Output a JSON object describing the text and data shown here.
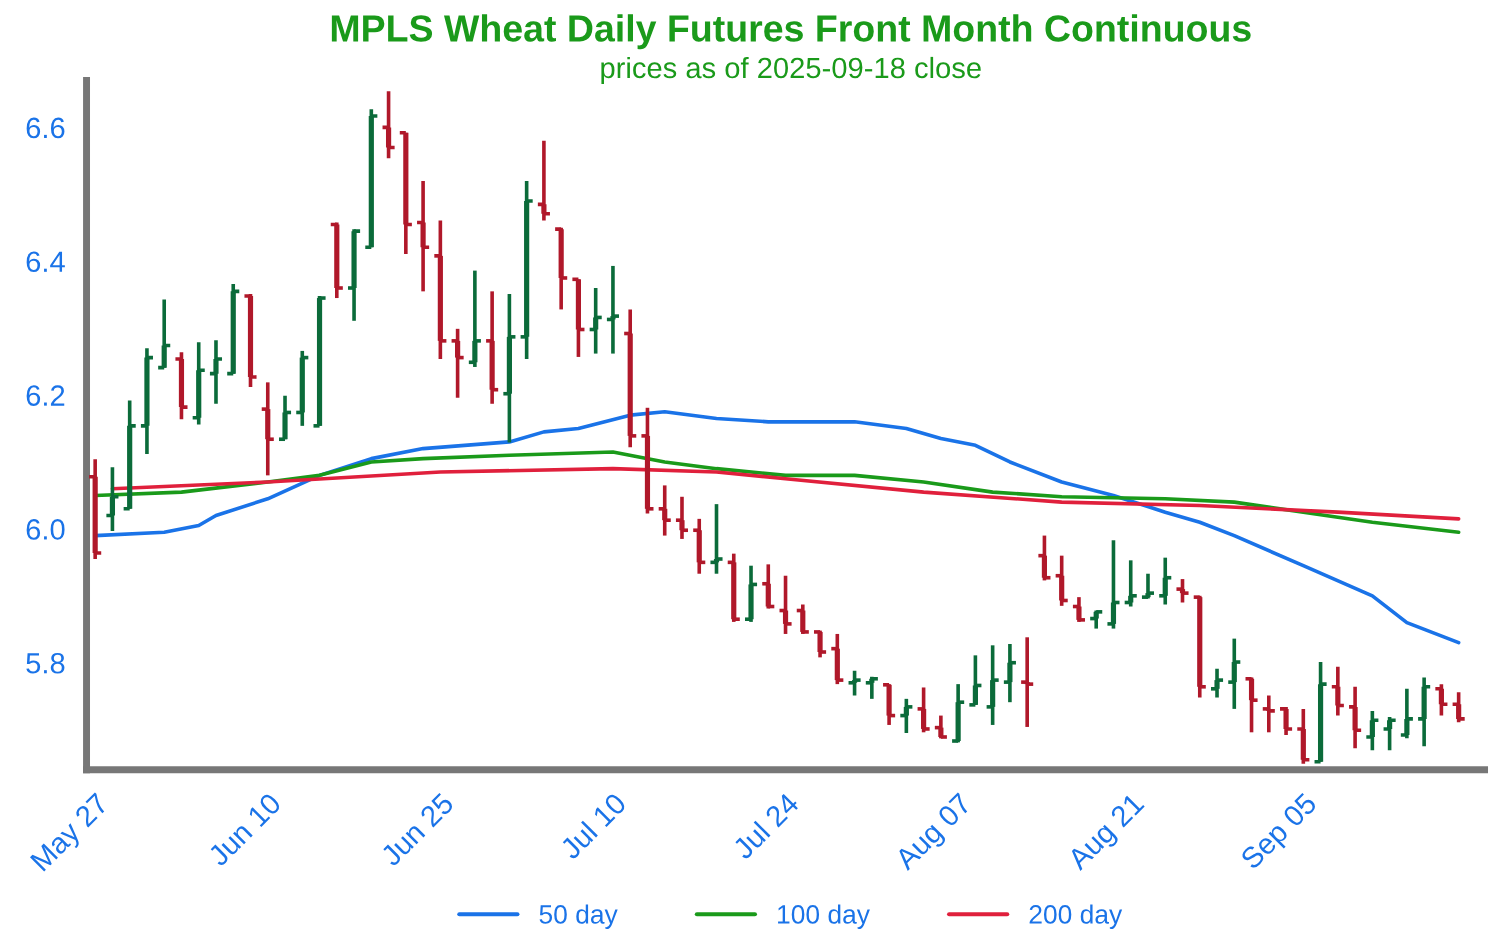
{
  "chart_data": {
    "type": "candlestick",
    "title": "MPLS Wheat Daily Futures Front Month Continuous",
    "subtitle": "prices as of 2025-09-18 close",
    "categories": [
      "May 27",
      null,
      null,
      null,
      null,
      null,
      null,
      null,
      null,
      null,
      "Jun 10",
      null,
      null,
      null,
      null,
      null,
      null,
      null,
      null,
      null,
      "Jun 25",
      null,
      null,
      null,
      null,
      null,
      null,
      null,
      null,
      null,
      "Jul 10",
      null,
      null,
      null,
      null,
      null,
      null,
      null,
      null,
      null,
      "Jul 24",
      null,
      null,
      null,
      null,
      null,
      null,
      null,
      null,
      null,
      "Aug 07",
      null,
      null,
      null,
      null,
      null,
      null,
      null,
      null,
      null,
      "Aug 21",
      null,
      null,
      null,
      null,
      null,
      null,
      null,
      null,
      null,
      "Sep 05",
      null,
      null,
      null,
      null,
      null,
      null,
      null,
      null,
      null
    ],
    "ohlc": [
      [
        6.078,
        6.104,
        5.955,
        5.964
      ],
      [
        6.02,
        6.092,
        5.997,
        6.048
      ],
      [
        6.03,
        6.192,
        6.03,
        6.154
      ],
      [
        6.154,
        6.27,
        6.112,
        6.256
      ],
      [
        6.241,
        6.343,
        6.241,
        6.274
      ],
      [
        6.254,
        6.264,
        6.164,
        6.182
      ],
      [
        6.166,
        6.279,
        6.156,
        6.237
      ],
      [
        6.232,
        6.282,
        6.187,
        6.254
      ],
      [
        6.232,
        6.366,
        6.232,
        6.355
      ],
      [
        6.348,
        6.351,
        6.212,
        6.227
      ],
      [
        6.179,
        6.219,
        6.08,
        6.134
      ],
      [
        6.134,
        6.199,
        6.134,
        6.174
      ],
      [
        6.174,
        6.266,
        6.154,
        6.256
      ],
      [
        6.154,
        6.348,
        6.154,
        6.345
      ],
      [
        6.455,
        6.458,
        6.345,
        6.36
      ],
      [
        6.36,
        6.448,
        6.311,
        6.445
      ],
      [
        6.421,
        6.627,
        6.421,
        6.617
      ],
      [
        6.6,
        6.654,
        6.554,
        6.57
      ],
      [
        6.592,
        6.592,
        6.411,
        6.455
      ],
      [
        6.458,
        6.52,
        6.355,
        6.421
      ],
      [
        6.408,
        6.461,
        6.254,
        6.281
      ],
      [
        6.281,
        6.299,
        6.196,
        6.256
      ],
      [
        6.249,
        6.386,
        6.242,
        6.281
      ],
      [
        6.281,
        6.355,
        6.187,
        6.208
      ],
      [
        6.202,
        6.351,
        6.129,
        6.287
      ],
      [
        6.287,
        6.52,
        6.254,
        6.49
      ],
      [
        6.485,
        6.58,
        6.461,
        6.471
      ],
      [
        6.448,
        6.45,
        6.328,
        6.375
      ],
      [
        6.373,
        6.373,
        6.257,
        6.298
      ],
      [
        6.298,
        6.36,
        6.262,
        6.316
      ],
      [
        6.313,
        6.393,
        6.262,
        6.318
      ],
      [
        6.292,
        6.328,
        6.122,
        6.139
      ],
      [
        6.139,
        6.181,
        6.023,
        6.03
      ],
      [
        6.03,
        6.065,
        5.99,
        6.013
      ],
      [
        6.013,
        6.048,
        5.985,
        5.998
      ],
      [
        5.998,
        6.015,
        5.933,
        5.95
      ],
      [
        5.95,
        6.037,
        5.933,
        5.955
      ],
      [
        5.95,
        5.963,
        5.861,
        5.865
      ],
      [
        5.865,
        5.945,
        5.861,
        5.917
      ],
      [
        5.918,
        5.947,
        5.881,
        5.884
      ],
      [
        5.878,
        5.93,
        5.843,
        5.858
      ],
      [
        5.878,
        5.887,
        5.843,
        5.846
      ],
      [
        5.846,
        5.848,
        5.808,
        5.816
      ],
      [
        5.821,
        5.843,
        5.768,
        5.774
      ],
      [
        5.77,
        5.788,
        5.751,
        5.774
      ],
      [
        5.77,
        5.779,
        5.746,
        5.776
      ],
      [
        5.767,
        5.768,
        5.707,
        5.721
      ],
      [
        5.721,
        5.746,
        5.695,
        5.734
      ],
      [
        5.731,
        5.763,
        5.696,
        5.701
      ],
      [
        5.703,
        5.721,
        5.687,
        5.689
      ],
      [
        5.683,
        5.768,
        5.681,
        5.741
      ],
      [
        5.737,
        5.811,
        5.737,
        5.766
      ],
      [
        5.734,
        5.826,
        5.707,
        5.774
      ],
      [
        5.771,
        5.828,
        5.741,
        5.8
      ],
      [
        5.771,
        5.838,
        5.704,
        5.768
      ],
      [
        5.96,
        5.99,
        5.923,
        5.927
      ],
      [
        5.93,
        5.96,
        5.885,
        5.893
      ],
      [
        5.884,
        5.898,
        5.861,
        5.864
      ],
      [
        5.866,
        5.878,
        5.851,
        5.876
      ],
      [
        5.858,
        5.983,
        5.851,
        5.89
      ],
      [
        5.89,
        5.953,
        5.884,
        5.9
      ],
      [
        5.898,
        5.933,
        5.896,
        5.904
      ],
      [
        5.9,
        5.957,
        5.887,
        5.927
      ],
      [
        5.91,
        5.925,
        5.89,
        5.904
      ],
      [
        5.898,
        5.9,
        5.748,
        5.764
      ],
      [
        5.761,
        5.791,
        5.748,
        5.774
      ],
      [
        5.771,
        5.836,
        5.731,
        5.801
      ],
      [
        5.776,
        5.778,
        5.696,
        5.744
      ],
      [
        5.731,
        5.751,
        5.696,
        5.728
      ],
      [
        5.731,
        5.734,
        5.692,
        5.701
      ],
      [
        5.701,
        5.731,
        5.649,
        5.655
      ],
      [
        5.652,
        5.801,
        5.652,
        5.768
      ],
      [
        5.764,
        5.794,
        5.721,
        5.736
      ],
      [
        5.734,
        5.764,
        5.672,
        5.699
      ],
      [
        5.689,
        5.728,
        5.669,
        5.714
      ],
      [
        5.701,
        5.719,
        5.669,
        5.714
      ],
      [
        5.692,
        5.761,
        5.687,
        5.716
      ],
      [
        5.716,
        5.778,
        5.675,
        5.764
      ],
      [
        5.761,
        5.768,
        5.721,
        5.738
      ],
      [
        5.738,
        5.756,
        5.711,
        5.716
      ]
    ],
    "colors": [
      "#b0182a",
      "#0b6b3a",
      "#0b6b3a",
      "#0b6b3a",
      "#0b6b3a",
      "#b0182a",
      "#0b6b3a",
      "#0b6b3a",
      "#0b6b3a",
      "#b0182a",
      "#b0182a",
      "#0b6b3a",
      "#0b6b3a",
      "#0b6b3a",
      "#b0182a",
      "#0b6b3a",
      "#0b6b3a",
      "#b0182a",
      "#b0182a",
      "#b0182a",
      "#b0182a",
      "#b0182a",
      "#0b6b3a",
      "#b0182a",
      "#0b6b3a",
      "#0b6b3a",
      "#b0182a",
      "#b0182a",
      "#b0182a",
      "#0b6b3a",
      "#0b6b3a",
      "#b0182a",
      "#b0182a",
      "#b0182a",
      "#b0182a",
      "#b0182a",
      "#0b6b3a",
      "#b0182a",
      "#0b6b3a",
      "#b0182a",
      "#b0182a",
      "#b0182a",
      "#b0182a",
      "#b0182a",
      "#0b6b3a",
      "#0b6b3a",
      "#b0182a",
      "#0b6b3a",
      "#b0182a",
      "#b0182a",
      "#0b6b3a",
      "#0b6b3a",
      "#0b6b3a",
      "#0b6b3a",
      "#b0182a",
      "#b0182a",
      "#b0182a",
      "#b0182a",
      "#0b6b3a",
      "#0b6b3a",
      "#0b6b3a",
      "#0b6b3a",
      "#0b6b3a",
      "#b0182a",
      "#b0182a",
      "#0b6b3a",
      "#0b6b3a",
      "#b0182a",
      "#b0182a",
      "#b0182a",
      "#b0182a",
      "#0b6b3a",
      "#b0182a",
      "#b0182a",
      "#0b6b3a",
      "#0b6b3a",
      "#0b6b3a",
      "#0b6b3a",
      "#b0182a",
      "#b0182a"
    ],
    "series": [
      {
        "name": "50 day",
        "type": "line",
        "color": "#1a73e8",
        "values": [
          5.99,
          null,
          null,
          null,
          5.995,
          null,
          6.005,
          6.02,
          null,
          null,
          6.045,
          null,
          null,
          6.08,
          null,
          null,
          6.105,
          null,
          null,
          6.12,
          null,
          null,
          null,
          null,
          6.13,
          null,
          6.145,
          null,
          6.15,
          null,
          null,
          6.17,
          null,
          6.175,
          null,
          null,
          6.165,
          null,
          null,
          6.16,
          null,
          null,
          null,
          null,
          6.16,
          null,
          null,
          6.15,
          null,
          6.135,
          null,
          6.125,
          null,
          6.1,
          null,
          null,
          6.07,
          null,
          null,
          6.05,
          null,
          null,
          6.025,
          null,
          6.01,
          null,
          5.99,
          null,
          null,
          null,
          5.945,
          null,
          null,
          null,
          5.9,
          null,
          5.86,
          null,
          null,
          5.83
        ]
      },
      {
        "name": "100 day",
        "type": "line",
        "color": "#1a9a1a",
        "values": [
          6.05,
          null,
          null,
          null,
          null,
          6.055,
          null,
          null,
          null,
          null,
          6.07,
          null,
          null,
          6.08,
          null,
          null,
          6.1,
          null,
          null,
          6.105,
          null,
          null,
          null,
          null,
          6.11,
          null,
          null,
          null,
          null,
          null,
          6.115,
          null,
          null,
          6.1,
          null,
          null,
          6.09,
          null,
          null,
          null,
          6.08,
          null,
          null,
          null,
          6.08,
          null,
          null,
          null,
          6.07,
          null,
          null,
          null,
          6.055,
          null,
          null,
          null,
          6.048,
          null,
          null,
          null,
          null,
          null,
          6.045,
          null,
          null,
          null,
          6.04,
          null,
          null,
          null,
          6.025,
          null,
          null,
          null,
          6.01,
          null,
          null,
          null,
          null,
          5.995
        ]
      },
      {
        "name": "200 day",
        "type": "line",
        "color": "#e0203c",
        "values": [
          null,
          6.06,
          null,
          null,
          null,
          null,
          null,
          null,
          null,
          null,
          6.07,
          null,
          null,
          null,
          null,
          null,
          null,
          null,
          null,
          null,
          6.085,
          null,
          null,
          null,
          null,
          null,
          null,
          null,
          null,
          null,
          6.09,
          null,
          null,
          null,
          null,
          null,
          6.085,
          null,
          null,
          null,
          6.075,
          null,
          null,
          null,
          null,
          null,
          null,
          null,
          6.055,
          null,
          null,
          null,
          null,
          null,
          null,
          null,
          6.04,
          null,
          null,
          null,
          null,
          null,
          null,
          null,
          6.035,
          null,
          null,
          null,
          null,
          null,
          null,
          null,
          6.025,
          null,
          null,
          null,
          null,
          null,
          null,
          6.015
        ]
      }
    ],
    "ylim": [
      5.64,
      6.67
    ],
    "yticks": [
      {
        "value": 5.8,
        "label": "5.8"
      },
      {
        "value": 6.0,
        "label": "6.0"
      },
      {
        "value": 6.2,
        "label": "6.2"
      },
      {
        "value": 6.4,
        "label": "6.4"
      },
      {
        "value": 6.6,
        "label": "6.6"
      }
    ],
    "grid": false,
    "legend": "bottom"
  }
}
